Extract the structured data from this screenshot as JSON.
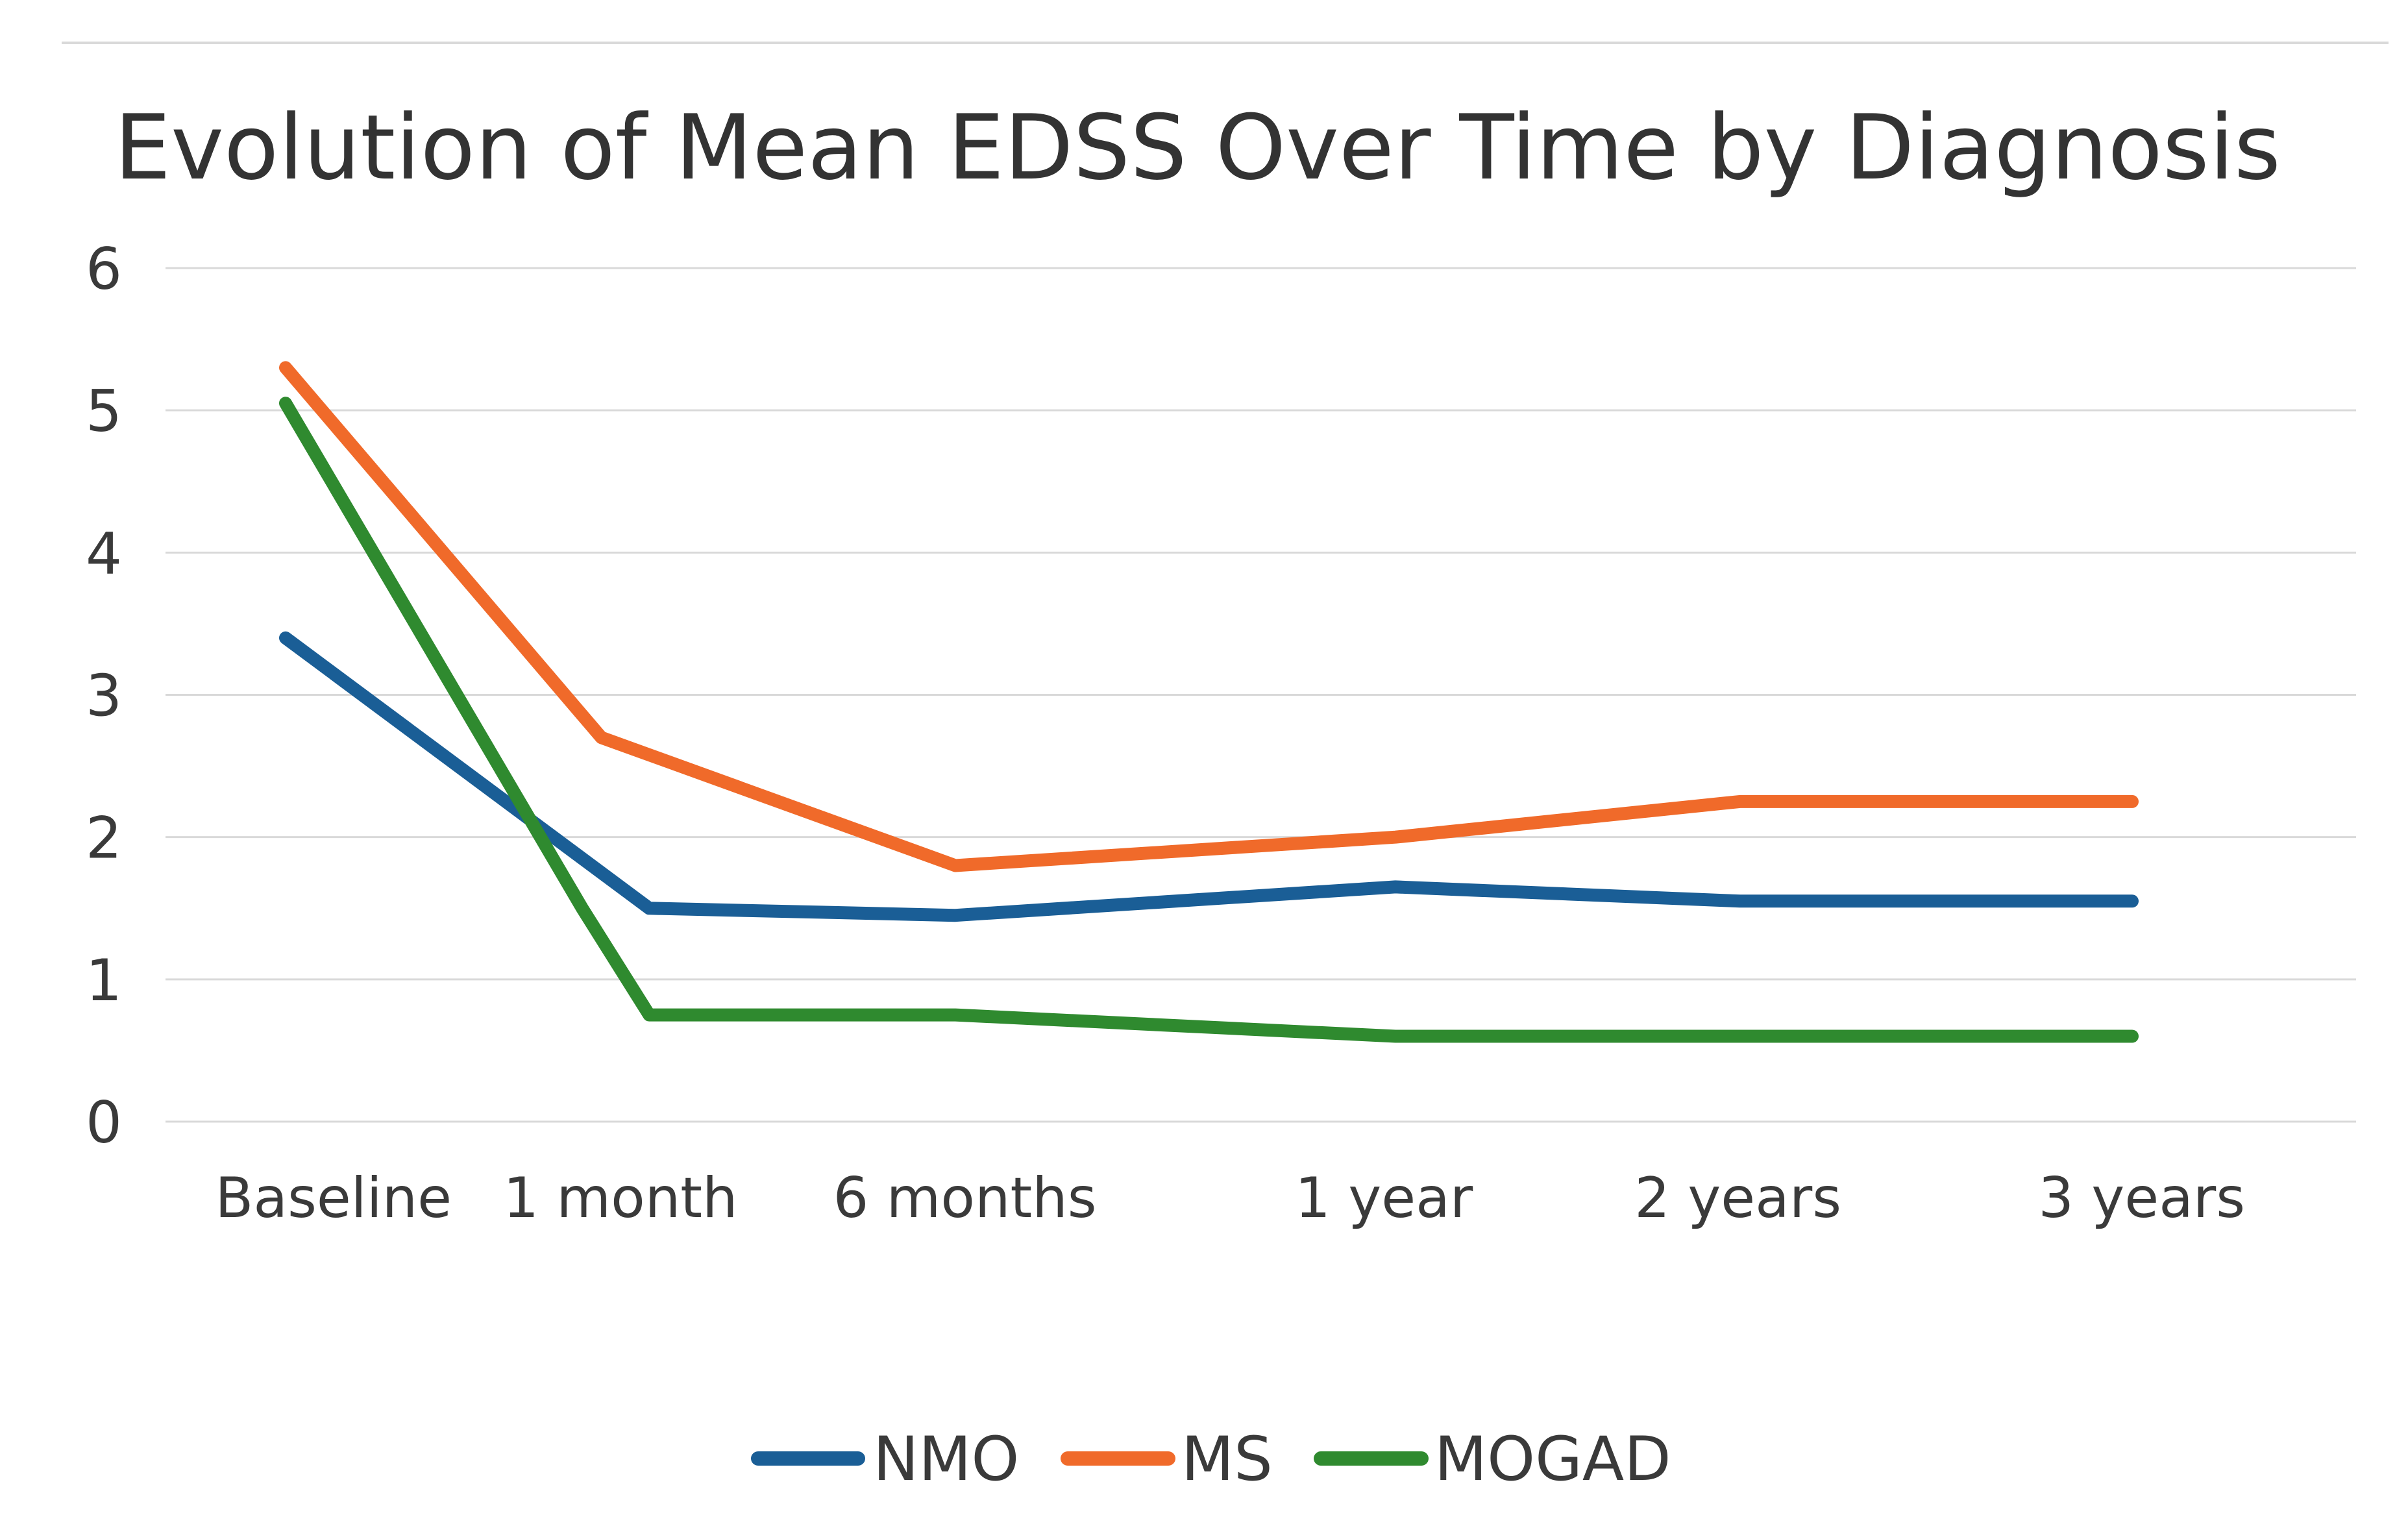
{
  "chart_data": {
    "type": "line",
    "title": "Evolution of Mean EDSS Over Time by Diagnosis",
    "xlabel": "",
    "ylabel": "",
    "categories": [
      "Baseline",
      "1 month",
      "6 months",
      "1 year",
      "2 years",
      "3 years"
    ],
    "x": [
      0,
      1.9,
      3.5,
      5.8,
      7.6,
      9.65
    ],
    "ylim": [
      0,
      6
    ],
    "yticks": [
      "0",
      "1",
      "2",
      "3",
      "4",
      "5",
      "6"
    ],
    "grid": true,
    "legend_position": "bottom",
    "series": [
      {
        "name": "NMO",
        "color": "#1a5e96",
        "points": [
          {
            "x": 0,
            "y": 3.4
          },
          {
            "x": 1.9,
            "y": 1.5
          },
          {
            "x": 3.5,
            "y": 1.45
          },
          {
            "x": 5.8,
            "y": 1.65
          },
          {
            "x": 7.6,
            "y": 1.55
          },
          {
            "x": 9.65,
            "y": 1.55
          }
        ]
      },
      {
        "name": "MS",
        "color": "#f06a2a",
        "points": [
          {
            "x": 0,
            "y": 5.3
          },
          {
            "x": 1.65,
            "y": 2.7
          },
          {
            "x": 3.5,
            "y": 1.8
          },
          {
            "x": 5.8,
            "y": 2.0
          },
          {
            "x": 7.6,
            "y": 2.25
          },
          {
            "x": 9.65,
            "y": 2.25
          }
        ]
      },
      {
        "name": "MOGAD",
        "color": "#2f8a2f",
        "points": [
          {
            "x": 0,
            "y": 5.05
          },
          {
            "x": 1.55,
            "y": 1.5
          },
          {
            "x": 1.9,
            "y": 0.75
          },
          {
            "x": 3.5,
            "y": 0.75
          },
          {
            "x": 5.8,
            "y": 0.6
          },
          {
            "x": 9.65,
            "y": 0.6
          }
        ]
      }
    ]
  }
}
